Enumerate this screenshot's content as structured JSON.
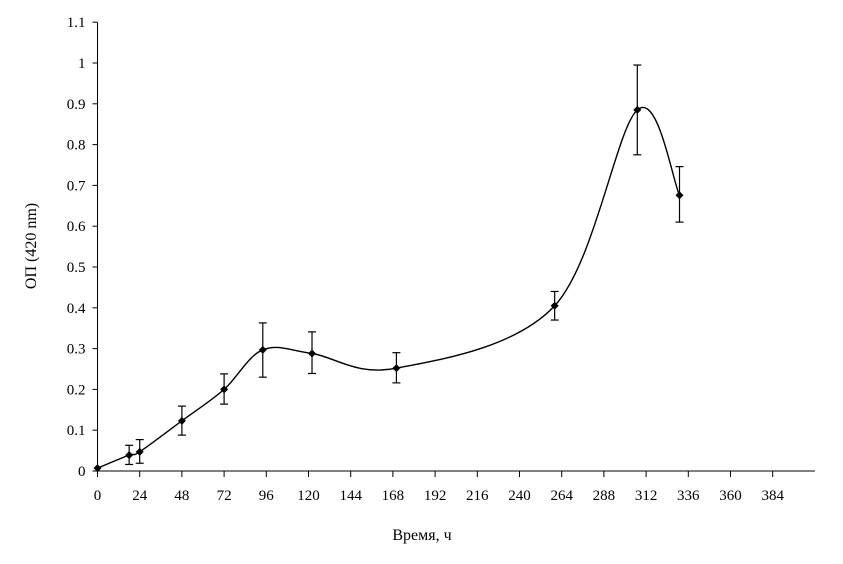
{
  "chart_data": {
    "type": "line",
    "title": "",
    "xlabel": "Время, ч",
    "ylabel": "ОП (420 nm)",
    "xlim": [
      0,
      408
    ],
    "ylim": [
      0,
      1.1
    ],
    "xticks": [
      0,
      24,
      48,
      72,
      96,
      120,
      144,
      168,
      192,
      216,
      240,
      264,
      288,
      312,
      336,
      360,
      384
    ],
    "yticks": [
      0,
      0.1,
      0.2,
      0.3,
      0.4,
      0.5,
      0.6,
      0.7,
      0.8,
      0.9,
      1,
      1.1
    ],
    "grid": false,
    "smooth": true,
    "marker": "diamond",
    "color": "#000000",
    "series": [
      {
        "x": [
          0,
          18,
          24,
          48,
          72,
          94,
          122,
          170,
          260,
          307,
          331
        ],
        "y": [
          0.007,
          0.039,
          0.047,
          0.123,
          0.2,
          0.297,
          0.288,
          0.252,
          0.405,
          0.885,
          0.676
        ],
        "err_low": [
          0.007,
          0.016,
          0.019,
          0.088,
          0.164,
          0.23,
          0.239,
          0.216,
          0.37,
          0.775,
          0.61
        ],
        "err_high": [
          0.007,
          0.063,
          0.077,
          0.159,
          0.238,
          0.363,
          0.341,
          0.29,
          0.44,
          0.995,
          0.746
        ]
      }
    ]
  }
}
